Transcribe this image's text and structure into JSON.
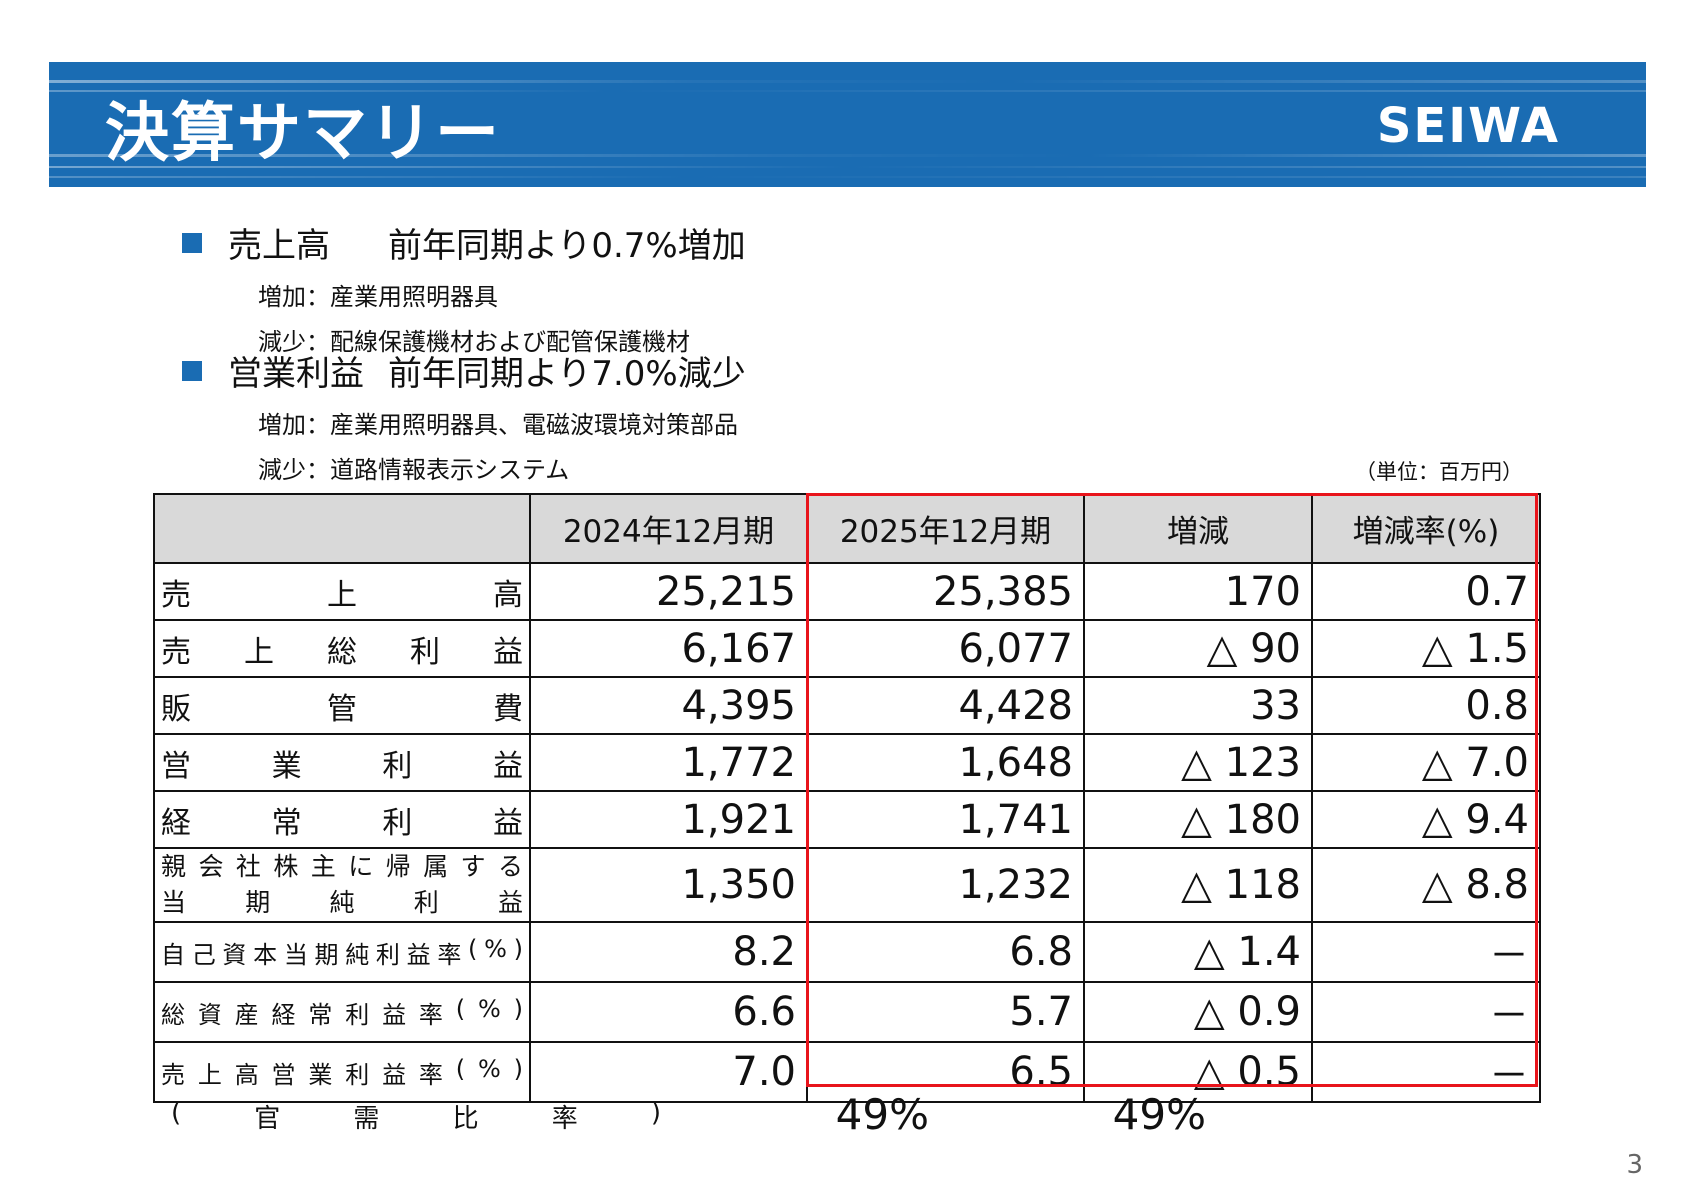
{
  "header": {
    "title": "決算サマリー",
    "logo_text": "SEIWA",
    "band_color": "#1a6cb3"
  },
  "summary": {
    "sales": {
      "label": "売上高",
      "description": "前年同期より0.7%増加",
      "increase_line": "増加：産業用照明器具",
      "decrease_line": "減少：配線保護機材および配管保護機材"
    },
    "operating_profit": {
      "label": "営業利益",
      "description": "前年同期より7.0%減少",
      "increase_line": "増加：産業用照明器具、電磁波環境対策部品",
      "decrease_line": "減少：道路情報表示システム"
    }
  },
  "unit_note": "（単位：百万円）",
  "table": {
    "headers": [
      "",
      "2024年12月期",
      "2025年12月期",
      "増減",
      "増減率(%)"
    ],
    "rows": [
      {
        "chars": [
          "売",
          "上",
          "高"
        ],
        "values": [
          "25,215",
          "25,385",
          "170",
          "0.7"
        ]
      },
      {
        "chars": [
          "売",
          "上",
          "総",
          "利",
          "益"
        ],
        "values": [
          "6,167",
          "6,077",
          "△ 90",
          "△ 1.5"
        ]
      },
      {
        "chars": [
          "販",
          "管",
          "費"
        ],
        "values": [
          "4,395",
          "4,428",
          "33",
          "0.8"
        ]
      },
      {
        "chars": [
          "営",
          "業",
          "利",
          "益"
        ],
        "values": [
          "1,772",
          "1,648",
          "△ 123",
          "△ 7.0"
        ]
      },
      {
        "chars": [
          "経",
          "常",
          "利",
          "益"
        ],
        "values": [
          "1,921",
          "1,741",
          "△ 180",
          "△ 9.4"
        ]
      },
      {
        "line1": [
          "親",
          "会",
          "社",
          "株",
          "主",
          "に",
          "帰",
          "属",
          "す",
          "る"
        ],
        "line2": [
          "当",
          "期",
          "純",
          "利",
          "益"
        ],
        "values": [
          "1,350",
          "1,232",
          "△ 118",
          "△ 8.8"
        ]
      },
      {
        "chars": [
          "自",
          "己",
          "資",
          "本",
          "当",
          "期",
          "純",
          "利",
          "益",
          "率",
          "(",
          "%",
          ")"
        ],
        "values": [
          "8.2",
          "6.8",
          "△ 1.4",
          "－"
        ]
      },
      {
        "chars": [
          "総",
          "資",
          "産",
          "経",
          "常",
          "利",
          "益",
          "率",
          "(",
          "%",
          ")"
        ],
        "values": [
          "6.6",
          "5.7",
          "△ 0.9",
          "－"
        ]
      },
      {
        "chars": [
          "売",
          "上",
          "高",
          "営",
          "業",
          "利",
          "益",
          "率",
          "(",
          "%",
          ")"
        ],
        "values": [
          "7.0",
          "6.5",
          "△ 0.5",
          "－"
        ]
      }
    ],
    "highlight_color": "#e8141b"
  },
  "ratio": {
    "chars": [
      "(",
      "官",
      "需",
      "比",
      "率",
      ")"
    ],
    "values": [
      "49%",
      "49%"
    ]
  },
  "page_number": "3"
}
